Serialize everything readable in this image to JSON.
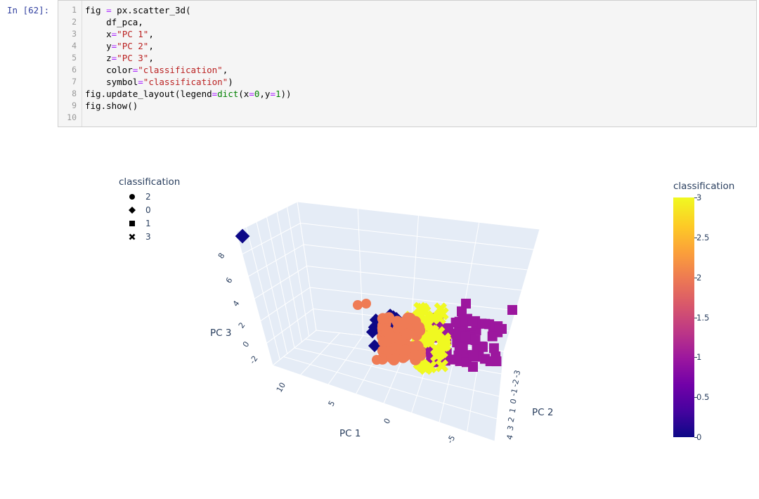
{
  "notebook": {
    "prompt": "In [62]:",
    "lines": [
      {
        "n": "1",
        "parts": [
          [
            "",
            "fig "
          ],
          [
            "op",
            "="
          ],
          [
            "",
            " px.scatter_3d("
          ]
        ]
      },
      {
        "n": "2",
        "parts": [
          [
            "",
            "    df_pca,"
          ]
        ]
      },
      {
        "n": "3",
        "parts": [
          [
            "",
            "    x"
          ],
          [
            "op",
            "="
          ],
          [
            "str",
            "\"PC 1\""
          ],
          [
            "",
            ","
          ]
        ]
      },
      {
        "n": "4",
        "parts": [
          [
            "",
            "    y"
          ],
          [
            "op",
            "="
          ],
          [
            "str",
            "\"PC 2\""
          ],
          [
            "",
            ","
          ]
        ]
      },
      {
        "n": "5",
        "parts": [
          [
            "",
            "    z"
          ],
          [
            "op",
            "="
          ],
          [
            "str",
            "\"PC 3\""
          ],
          [
            "",
            ","
          ]
        ]
      },
      {
        "n": "6",
        "parts": [
          [
            "",
            "    color"
          ],
          [
            "op",
            "="
          ],
          [
            "str",
            "\"classification\""
          ],
          [
            "",
            ","
          ]
        ]
      },
      {
        "n": "7",
        "parts": [
          [
            "",
            "    symbol"
          ],
          [
            "op",
            "="
          ],
          [
            "str",
            "\"classification\""
          ],
          [
            "",
            ")"
          ]
        ]
      },
      {
        "n": "8",
        "parts": [
          [
            "",
            "fig.update_layout(legend"
          ],
          [
            "op",
            "="
          ],
          [
            "kw",
            "dict"
          ],
          [
            "",
            "(x"
          ],
          [
            "op",
            "="
          ],
          [
            "num",
            "0"
          ],
          [
            "",
            ",y"
          ],
          [
            "op",
            "="
          ],
          [
            "num",
            "1"
          ],
          [
            "",
            "))"
          ]
        ]
      },
      {
        "n": "9",
        "parts": [
          [
            "",
            "fig.show()"
          ]
        ]
      },
      {
        "n": "10",
        "parts": [
          [
            "",
            ""
          ]
        ]
      }
    ]
  },
  "legend": {
    "title": "classification",
    "items": [
      {
        "symbol": "circle-icon",
        "label": "2"
      },
      {
        "symbol": "diamond-icon",
        "label": "0"
      },
      {
        "symbol": "square-icon",
        "label": "1"
      },
      {
        "symbol": "x-icon",
        "label": "3"
      }
    ]
  },
  "colorbar": {
    "title": "classification",
    "ticks": [
      "3",
      "2.5",
      "2",
      "1.5",
      "1",
      "0.5",
      "0"
    ]
  },
  "chart_data": {
    "type": "scatter",
    "dimensions": 3,
    "xlabel": "PC 1",
    "ylabel": "PC 2",
    "zlabel": "PC 3",
    "x_ticks": [
      "10",
      "5",
      "0",
      "-5"
    ],
    "y_ticks": [
      "-3",
      "-2",
      "-1",
      "0",
      "1",
      "2",
      "3",
      "4"
    ],
    "z_ticks": [
      "8",
      "6",
      "4",
      "2",
      "0",
      "-2"
    ],
    "colorscale": [
      "#0d0887",
      "#46039f",
      "#7201a8",
      "#9c179e",
      "#bd3786",
      "#d8576b",
      "#ed7953",
      "#fb9f3a",
      "#fdca26",
      "#f0f921"
    ],
    "series": [
      {
        "name": "2",
        "symbol": "circle",
        "color": "#ef7b55",
        "class_value": 2
      },
      {
        "name": "0",
        "symbol": "diamond",
        "color": "#0d0887",
        "class_value": 0
      },
      {
        "name": "1",
        "symbol": "square",
        "color": "#9c179e",
        "class_value": 1
      },
      {
        "name": "3",
        "symbol": "x",
        "color": "#f0f921",
        "class_value": 3
      }
    ],
    "legend_position": "top-left"
  }
}
